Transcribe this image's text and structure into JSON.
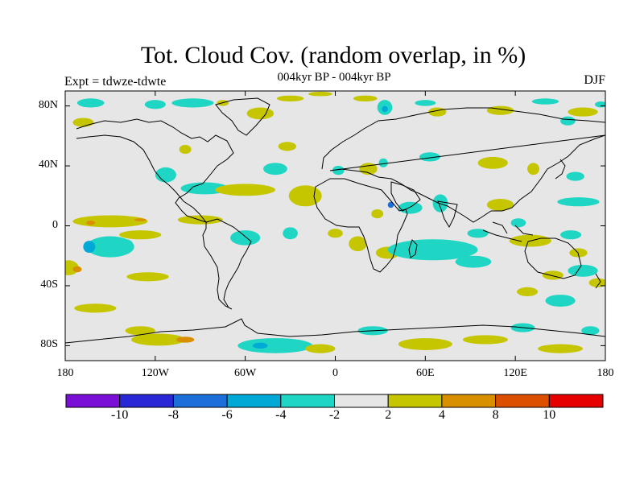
{
  "title": "Tot. Cloud Cov. (random overlap, in %)",
  "subtitle": "004kyr BP - 004kyr BP",
  "experiment": "Expt = tdwze-tdwte",
  "season": "DJF",
  "map": {
    "lat_ticks": [
      {
        "value": 80,
        "label": "80N"
      },
      {
        "value": 40,
        "label": "40N"
      },
      {
        "value": 0,
        "label": "0"
      },
      {
        "value": -40,
        "label": "40S"
      },
      {
        "value": -80,
        "label": "80S"
      }
    ],
    "lon_ticks": [
      {
        "value": -180,
        "label": "180"
      },
      {
        "value": -120,
        "label": "120W"
      },
      {
        "value": -60,
        "label": "60W"
      },
      {
        "value": 0,
        "label": "0"
      },
      {
        "value": 60,
        "label": "60E"
      },
      {
        "value": 120,
        "label": "120E"
      },
      {
        "value": 180,
        "label": "180"
      }
    ],
    "lon_range": [
      -180,
      180
    ],
    "lat_range": [
      -90,
      90
    ],
    "background_color": "#e6e6e6",
    "anomalies": [
      {
        "lon": -163,
        "lat": 82,
        "rx": 9,
        "ry": 3,
        "level": -4
      },
      {
        "lon": -120,
        "lat": 81,
        "rx": 7,
        "ry": 3,
        "level": -4
      },
      {
        "lon": -95,
        "lat": 82,
        "rx": 14,
        "ry": 3,
        "level": -4
      },
      {
        "lon": -168,
        "lat": 69,
        "rx": 7,
        "ry": 3,
        "level": 2
      },
      {
        "lon": -100,
        "lat": 51,
        "rx": 4,
        "ry": 3,
        "level": 2
      },
      {
        "lon": -75,
        "lat": 82,
        "rx": 4,
        "ry": 2,
        "level": 2
      },
      {
        "lon": -50,
        "lat": 75,
        "rx": 9,
        "ry": 4,
        "level": 2
      },
      {
        "lon": -30,
        "lat": 85,
        "rx": 9,
        "ry": 2,
        "level": 2
      },
      {
        "lon": -10,
        "lat": 88,
        "rx": 8,
        "ry": 1.5,
        "level": 2
      },
      {
        "lon": 20,
        "lat": 85,
        "rx": 8,
        "ry": 2,
        "level": 2
      },
      {
        "lon": 33,
        "lat": 79,
        "rx": 5,
        "ry": 5,
        "level": -4
      },
      {
        "lon": 33,
        "lat": 78,
        "rx": 2,
        "ry": 2,
        "level": -6
      },
      {
        "lon": 60,
        "lat": 82,
        "rx": 7,
        "ry": 2,
        "level": -4
      },
      {
        "lon": 68,
        "lat": 76,
        "rx": 6,
        "ry": 3,
        "level": 2
      },
      {
        "lon": 110,
        "lat": 77,
        "rx": 9,
        "ry": 3,
        "level": 2
      },
      {
        "lon": 140,
        "lat": 83,
        "rx": 9,
        "ry": 2,
        "level": -4
      },
      {
        "lon": 177,
        "lat": 81,
        "rx": 4,
        "ry": 2,
        "level": -4
      },
      {
        "lon": 165,
        "lat": 76,
        "rx": 10,
        "ry": 3,
        "level": 2
      },
      {
        "lon": 155,
        "lat": 70,
        "rx": 5,
        "ry": 3,
        "level": -4
      },
      {
        "lon": -32,
        "lat": 53,
        "rx": 6,
        "ry": 3,
        "level": 2
      },
      {
        "lon": -40,
        "lat": 38,
        "rx": 8,
        "ry": 4,
        "level": -4
      },
      {
        "lon": -113,
        "lat": 34,
        "rx": 7,
        "ry": 5,
        "level": -4
      },
      {
        "lon": -87,
        "lat": 25,
        "rx": 16,
        "ry": 4,
        "level": -4
      },
      {
        "lon": -60,
        "lat": 24,
        "rx": 20,
        "ry": 4,
        "level": 2
      },
      {
        "lon": -20,
        "lat": 20,
        "rx": 11,
        "ry": 7,
        "level": 2
      },
      {
        "lon": 2,
        "lat": 37,
        "rx": 4,
        "ry": 3,
        "level": -4
      },
      {
        "lon": 22,
        "lat": 38,
        "rx": 6,
        "ry": 4,
        "level": 2
      },
      {
        "lon": 32,
        "lat": 42,
        "rx": 3,
        "ry": 3,
        "level": -4
      },
      {
        "lon": 63,
        "lat": 46,
        "rx": 7,
        "ry": 3,
        "level": -4
      },
      {
        "lon": 105,
        "lat": 42,
        "rx": 10,
        "ry": 4,
        "level": 2
      },
      {
        "lon": 132,
        "lat": 38,
        "rx": 4,
        "ry": 4,
        "level": 2
      },
      {
        "lon": 160,
        "lat": 33,
        "rx": 6,
        "ry": 3,
        "level": -4
      },
      {
        "lon": 110,
        "lat": 14,
        "rx": 9,
        "ry": 4,
        "level": 2
      },
      {
        "lon": 162,
        "lat": 16,
        "rx": 14,
        "ry": 3,
        "level": -4
      },
      {
        "lon": 28,
        "lat": 8,
        "rx": 4,
        "ry": 3,
        "level": 2
      },
      {
        "lon": 37,
        "lat": 14,
        "rx": 2,
        "ry": 2,
        "level": -8
      },
      {
        "lon": 50,
        "lat": 12,
        "rx": 8,
        "ry": 4,
        "level": -4
      },
      {
        "lon": 70,
        "lat": 15,
        "rx": 5,
        "ry": 6,
        "level": -4
      },
      {
        "lon": 122,
        "lat": 2,
        "rx": 5,
        "ry": 3,
        "level": -4
      },
      {
        "lon": -150,
        "lat": 3,
        "rx": 25,
        "ry": 4,
        "level": 2
      },
      {
        "lon": -90,
        "lat": 4,
        "rx": 15,
        "ry": 3,
        "level": 2
      },
      {
        "lon": -163,
        "lat": 2,
        "rx": 3,
        "ry": 1.5,
        "level": 4
      },
      {
        "lon": -130,
        "lat": 4,
        "rx": 4,
        "ry": 1,
        "level": 4
      },
      {
        "lon": -130,
        "lat": -6,
        "rx": 14,
        "ry": 3,
        "level": 2
      },
      {
        "lon": -150,
        "lat": -14,
        "rx": 16,
        "ry": 7,
        "level": -4
      },
      {
        "lon": -164,
        "lat": -14,
        "rx": 4,
        "ry": 4,
        "level": -6
      },
      {
        "lon": -140,
        "lat": -12,
        "rx": 5,
        "ry": 3,
        "level": -4
      },
      {
        "lon": -178,
        "lat": -28,
        "rx": 7,
        "ry": 5,
        "level": 2
      },
      {
        "lon": -172,
        "lat": -29,
        "rx": 3,
        "ry": 2,
        "level": 4
      },
      {
        "lon": -125,
        "lat": -34,
        "rx": 14,
        "ry": 3,
        "level": 2
      },
      {
        "lon": -60,
        "lat": -8,
        "rx": 10,
        "ry": 5,
        "level": -4
      },
      {
        "lon": -30,
        "lat": -5,
        "rx": 5,
        "ry": 4,
        "level": -4
      },
      {
        "lon": 0,
        "lat": -5,
        "rx": 5,
        "ry": 3,
        "level": 2
      },
      {
        "lon": 15,
        "lat": -12,
        "rx": 6,
        "ry": 5,
        "level": 2
      },
      {
        "lon": 35,
        "lat": -18,
        "rx": 8,
        "ry": 4,
        "level": 2
      },
      {
        "lon": 65,
        "lat": -16,
        "rx": 30,
        "ry": 7,
        "level": -4
      },
      {
        "lon": 92,
        "lat": -24,
        "rx": 12,
        "ry": 4,
        "level": -4
      },
      {
        "lon": 95,
        "lat": -5,
        "rx": 7,
        "ry": 3,
        "level": -4
      },
      {
        "lon": 130,
        "lat": -10,
        "rx": 14,
        "ry": 4,
        "level": 2
      },
      {
        "lon": 157,
        "lat": -6,
        "rx": 7,
        "ry": 3,
        "level": -4
      },
      {
        "lon": 162,
        "lat": -18,
        "rx": 6,
        "ry": 3,
        "level": 2
      },
      {
        "lon": 165,
        "lat": -30,
        "rx": 10,
        "ry": 4,
        "level": -4
      },
      {
        "lon": 145,
        "lat": -33,
        "rx": 7,
        "ry": 3,
        "level": 2
      },
      {
        "lon": 175,
        "lat": -38,
        "rx": 6,
        "ry": 3,
        "level": 2
      },
      {
        "lon": 150,
        "lat": -50,
        "rx": 10,
        "ry": 4,
        "level": -4
      },
      {
        "lon": 128,
        "lat": -44,
        "rx": 7,
        "ry": 3,
        "level": 2
      },
      {
        "lon": -160,
        "lat": -55,
        "rx": 14,
        "ry": 3,
        "level": 2
      },
      {
        "lon": -130,
        "lat": -70,
        "rx": 10,
        "ry": 3,
        "level": 2
      },
      {
        "lon": -118,
        "lat": -76,
        "rx": 18,
        "ry": 4,
        "level": 2
      },
      {
        "lon": -100,
        "lat": -76,
        "rx": 6,
        "ry": 2,
        "level": 4
      },
      {
        "lon": -40,
        "lat": -80,
        "rx": 25,
        "ry": 5,
        "level": -4
      },
      {
        "lon": -50,
        "lat": -80,
        "rx": 5,
        "ry": 2,
        "level": -6
      },
      {
        "lon": -10,
        "lat": -82,
        "rx": 10,
        "ry": 3,
        "level": 2
      },
      {
        "lon": 25,
        "lat": -70,
        "rx": 10,
        "ry": 3,
        "level": -4
      },
      {
        "lon": 60,
        "lat": -79,
        "rx": 18,
        "ry": 4,
        "level": 2
      },
      {
        "lon": 100,
        "lat": -76,
        "rx": 15,
        "ry": 3,
        "level": 2
      },
      {
        "lon": 125,
        "lat": -68,
        "rx": 8,
        "ry": 3,
        "level": -4
      },
      {
        "lon": 170,
        "lat": -70,
        "rx": 6,
        "ry": 3,
        "level": -4
      },
      {
        "lon": 150,
        "lat": -82,
        "rx": 15,
        "ry": 3,
        "level": 2
      }
    ]
  },
  "colorbar": {
    "colors": [
      "#7a10d6",
      "#2a28d6",
      "#1c6fd8",
      "#00a9d6",
      "#1ed6c3",
      "#e6e6e6",
      "#c6c600",
      "#d99000",
      "#dc4f00",
      "#e60000"
    ],
    "labels": [
      "-10",
      "-8",
      "-6",
      "-4",
      "-2",
      "2",
      "4",
      "8",
      "10"
    ]
  }
}
